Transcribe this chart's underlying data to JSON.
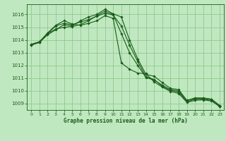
{
  "background_color": "#c0e8c0",
  "grid_color": "#90c890",
  "line_color": "#1a5c1a",
  "title": "Graphe pression niveau de la mer (hPa)",
  "xlim": [
    -0.5,
    23.5
  ],
  "ylim": [
    1008.5,
    1016.8
  ],
  "yticks": [
    1009,
    1010,
    1011,
    1012,
    1013,
    1014,
    1015,
    1016
  ],
  "xticks": [
    0,
    1,
    2,
    3,
    4,
    5,
    6,
    7,
    8,
    9,
    10,
    11,
    12,
    13,
    14,
    15,
    16,
    17,
    18,
    19,
    20,
    21,
    22,
    23
  ],
  "series": [
    {
      "x": [
        0,
        1,
        2,
        3,
        4,
        5,
        6,
        7,
        8,
        9,
        10,
        11,
        12,
        13,
        14,
        15,
        16,
        17,
        18,
        19,
        20,
        21,
        22,
        23
      ],
      "y": [
        1013.6,
        1013.8,
        1014.4,
        1014.8,
        1015.2,
        1015.1,
        1015.5,
        1015.8,
        1016.0,
        1016.4,
        1016.05,
        1015.8,
        1014.0,
        1012.5,
        1011.3,
        1011.15,
        1010.65,
        1010.2,
        1010.1,
        1009.25,
        1009.4,
        1009.4,
        1009.35,
        1008.85
      ]
    },
    {
      "x": [
        0,
        1,
        2,
        3,
        4,
        5,
        6,
        7,
        8,
        9,
        10,
        11,
        12,
        13,
        14,
        15,
        16,
        17,
        18,
        19,
        20,
        21,
        22,
        23
      ],
      "y": [
        1013.6,
        1013.8,
        1014.5,
        1015.1,
        1015.3,
        1015.2,
        1015.4,
        1015.6,
        1015.85,
        1016.1,
        1015.95,
        1015.1,
        1013.6,
        1012.3,
        1011.1,
        1010.9,
        1010.35,
        1010.05,
        1009.9,
        1009.15,
        1009.35,
        1009.35,
        1009.25,
        1008.75
      ]
    },
    {
      "x": [
        0,
        1,
        2,
        3,
        4,
        5,
        6,
        7,
        8,
        9,
        10,
        11,
        12,
        13,
        14,
        15,
        16,
        17,
        18,
        19,
        20,
        21,
        22,
        23
      ],
      "y": [
        1013.65,
        1013.85,
        1014.5,
        1014.85,
        1015.0,
        1015.05,
        1015.2,
        1015.5,
        1015.9,
        1016.25,
        1016.0,
        1014.5,
        1013.0,
        1012.0,
        1011.05,
        1010.85,
        1010.45,
        1010.1,
        1010.0,
        1009.25,
        1009.45,
        1009.45,
        1009.35,
        1008.85
      ]
    },
    {
      "x": [
        0,
        1,
        2,
        3,
        4,
        5,
        6,
        7,
        8,
        9,
        10,
        11,
        12,
        13,
        14,
        15,
        16,
        17,
        18,
        19,
        20,
        21,
        22,
        23
      ],
      "y": [
        1013.65,
        1013.85,
        1014.55,
        1015.15,
        1015.5,
        1015.25,
        1015.15,
        1015.3,
        1015.5,
        1015.9,
        1015.7,
        1012.2,
        1011.7,
        1011.4,
        1011.35,
        1010.7,
        1010.3,
        1009.95,
        1009.8,
        1009.1,
        1009.25,
        1009.3,
        1009.2,
        1008.8
      ]
    }
  ]
}
